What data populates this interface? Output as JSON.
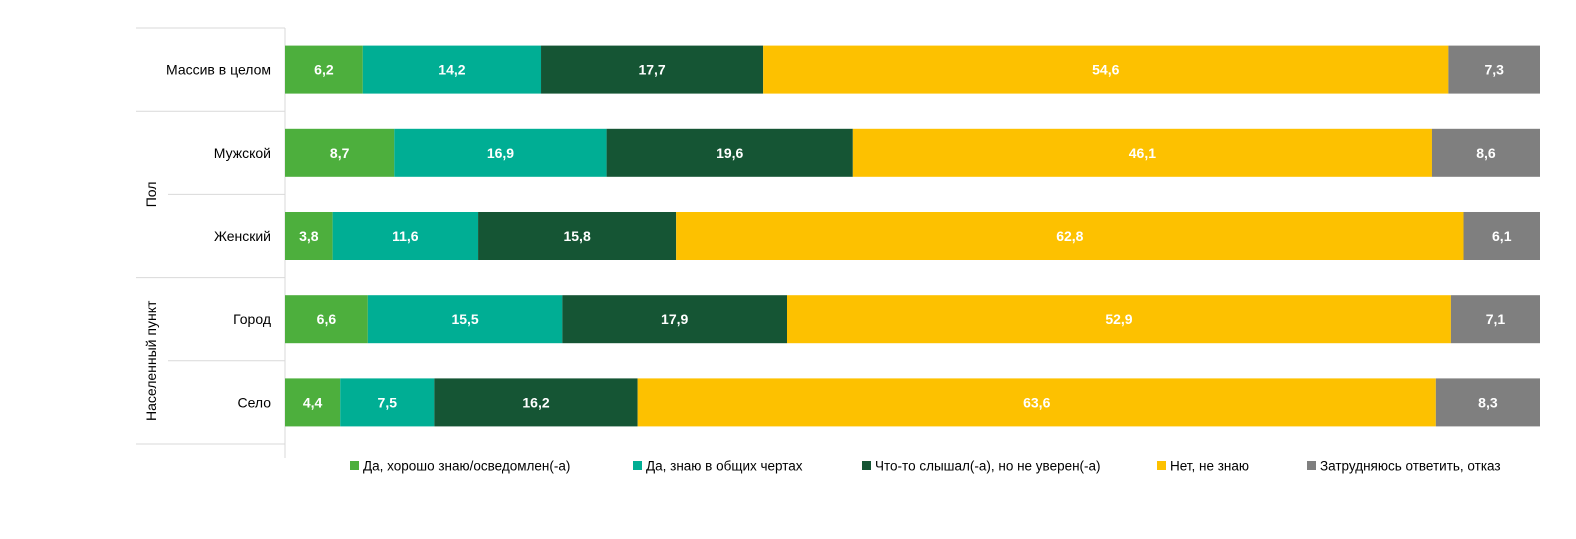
{
  "chart_data": {
    "type": "bar",
    "orientation": "horizontal",
    "stacked": true,
    "percent_stacked": true,
    "categories": [
      "Массив в целом",
      "Мужской",
      "Женский",
      "Город",
      "Село"
    ],
    "groups": [
      {
        "label": "",
        "categories": [
          "Массив в целом"
        ]
      },
      {
        "label": "Пол",
        "categories": [
          "Мужской",
          "Женский"
        ]
      },
      {
        "label": "Населенный пункт",
        "categories": [
          "Город",
          "Село"
        ]
      }
    ],
    "series": [
      {
        "name": "Да, хорошо знаю/осведомлен(-а)",
        "color": "#4daf3d",
        "values": [
          6.2,
          8.7,
          3.8,
          6.6,
          4.4
        ],
        "labels": [
          "6,2",
          "8,7",
          "3,8",
          "6,6",
          "4,4"
        ]
      },
      {
        "name": "Да, знаю в общих чертах",
        "color": "#00ae94",
        "values": [
          14.2,
          16.9,
          11.6,
          15.5,
          7.5
        ],
        "labels": [
          "14,2",
          "16,9",
          "11,6",
          "15,5",
          "7,5"
        ]
      },
      {
        "name": "Что-то слышал(-а), но не уверен(-а)",
        "color": "#155534",
        "values": [
          17.7,
          19.6,
          15.8,
          17.9,
          16.2
        ],
        "labels": [
          "17,7",
          "19,6",
          "15,8",
          "17,9",
          "16,2"
        ]
      },
      {
        "name": "Нет, не знаю",
        "color": "#fdc100",
        "values": [
          54.6,
          46.1,
          62.8,
          52.9,
          63.6
        ],
        "labels": [
          "54,6",
          "46,1",
          "62,8",
          "52,9",
          "63,6"
        ]
      },
      {
        "name": "Затрудняюсь ответить, отказ",
        "color": "#7f7f7f",
        "values": [
          7.3,
          8.6,
          6.1,
          7.1,
          8.3
        ],
        "labels": [
          "7,3",
          "8,6",
          "6,1",
          "7,1",
          "8,3"
        ]
      }
    ],
    "title": "",
    "xlabel": "",
    "ylabel": "",
    "xlim": [
      0,
      100
    ],
    "legend_position": "bottom",
    "grid": false
  }
}
